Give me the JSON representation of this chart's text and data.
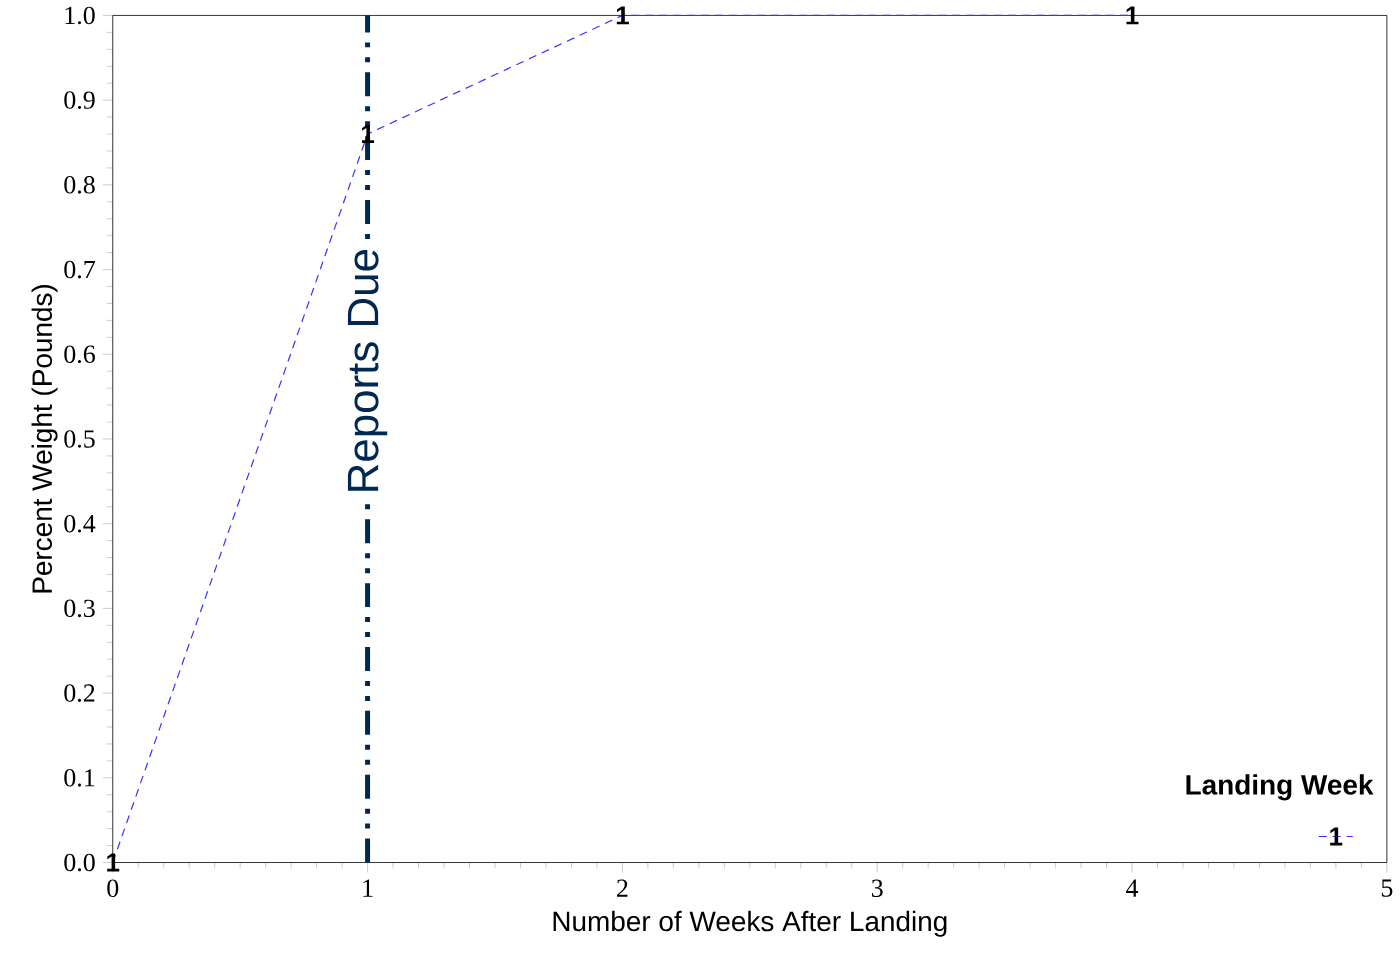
{
  "chart_data": {
    "type": "line",
    "xlabel": "Number of Weeks After Landing",
    "ylabel": "Percent Weight (Pounds)",
    "legend_title": "Landing Week",
    "x": [
      0,
      1,
      2,
      4
    ],
    "series": [
      {
        "name": "1",
        "color": "#3333ff",
        "values": [
          0,
          0.86,
          1,
          1
        ]
      }
    ],
    "line_style": "dashed",
    "legend": "bottom right",
    "xlim": [
      0,
      5
    ],
    "xticks": [
      0,
      1,
      2,
      3,
      4,
      5
    ],
    "ylim": [
      0,
      1
    ],
    "yticks": [
      {
        "value": 0,
        "label": "0.0"
      },
      {
        "value": 0.1,
        "label": "0.1"
      },
      {
        "value": 0.2,
        "label": "0.2"
      },
      {
        "value": 0.3,
        "label": "0.3"
      },
      {
        "value": 0.4,
        "label": "0.4"
      },
      {
        "value": 0.5,
        "label": "0.5"
      },
      {
        "value": 0.6,
        "label": "0.6"
      },
      {
        "value": 0.7,
        "label": "0.7"
      },
      {
        "value": 0.8,
        "label": "0.8"
      },
      {
        "value": 0.9,
        "label": "0.9"
      },
      {
        "value": 1,
        "label": "1.0"
      }
    ],
    "ref_lines": [
      {
        "axis": "x",
        "value": 1,
        "label": "Reports Due",
        "color": "#002850",
        "line_style": "dashdot"
      }
    ]
  }
}
